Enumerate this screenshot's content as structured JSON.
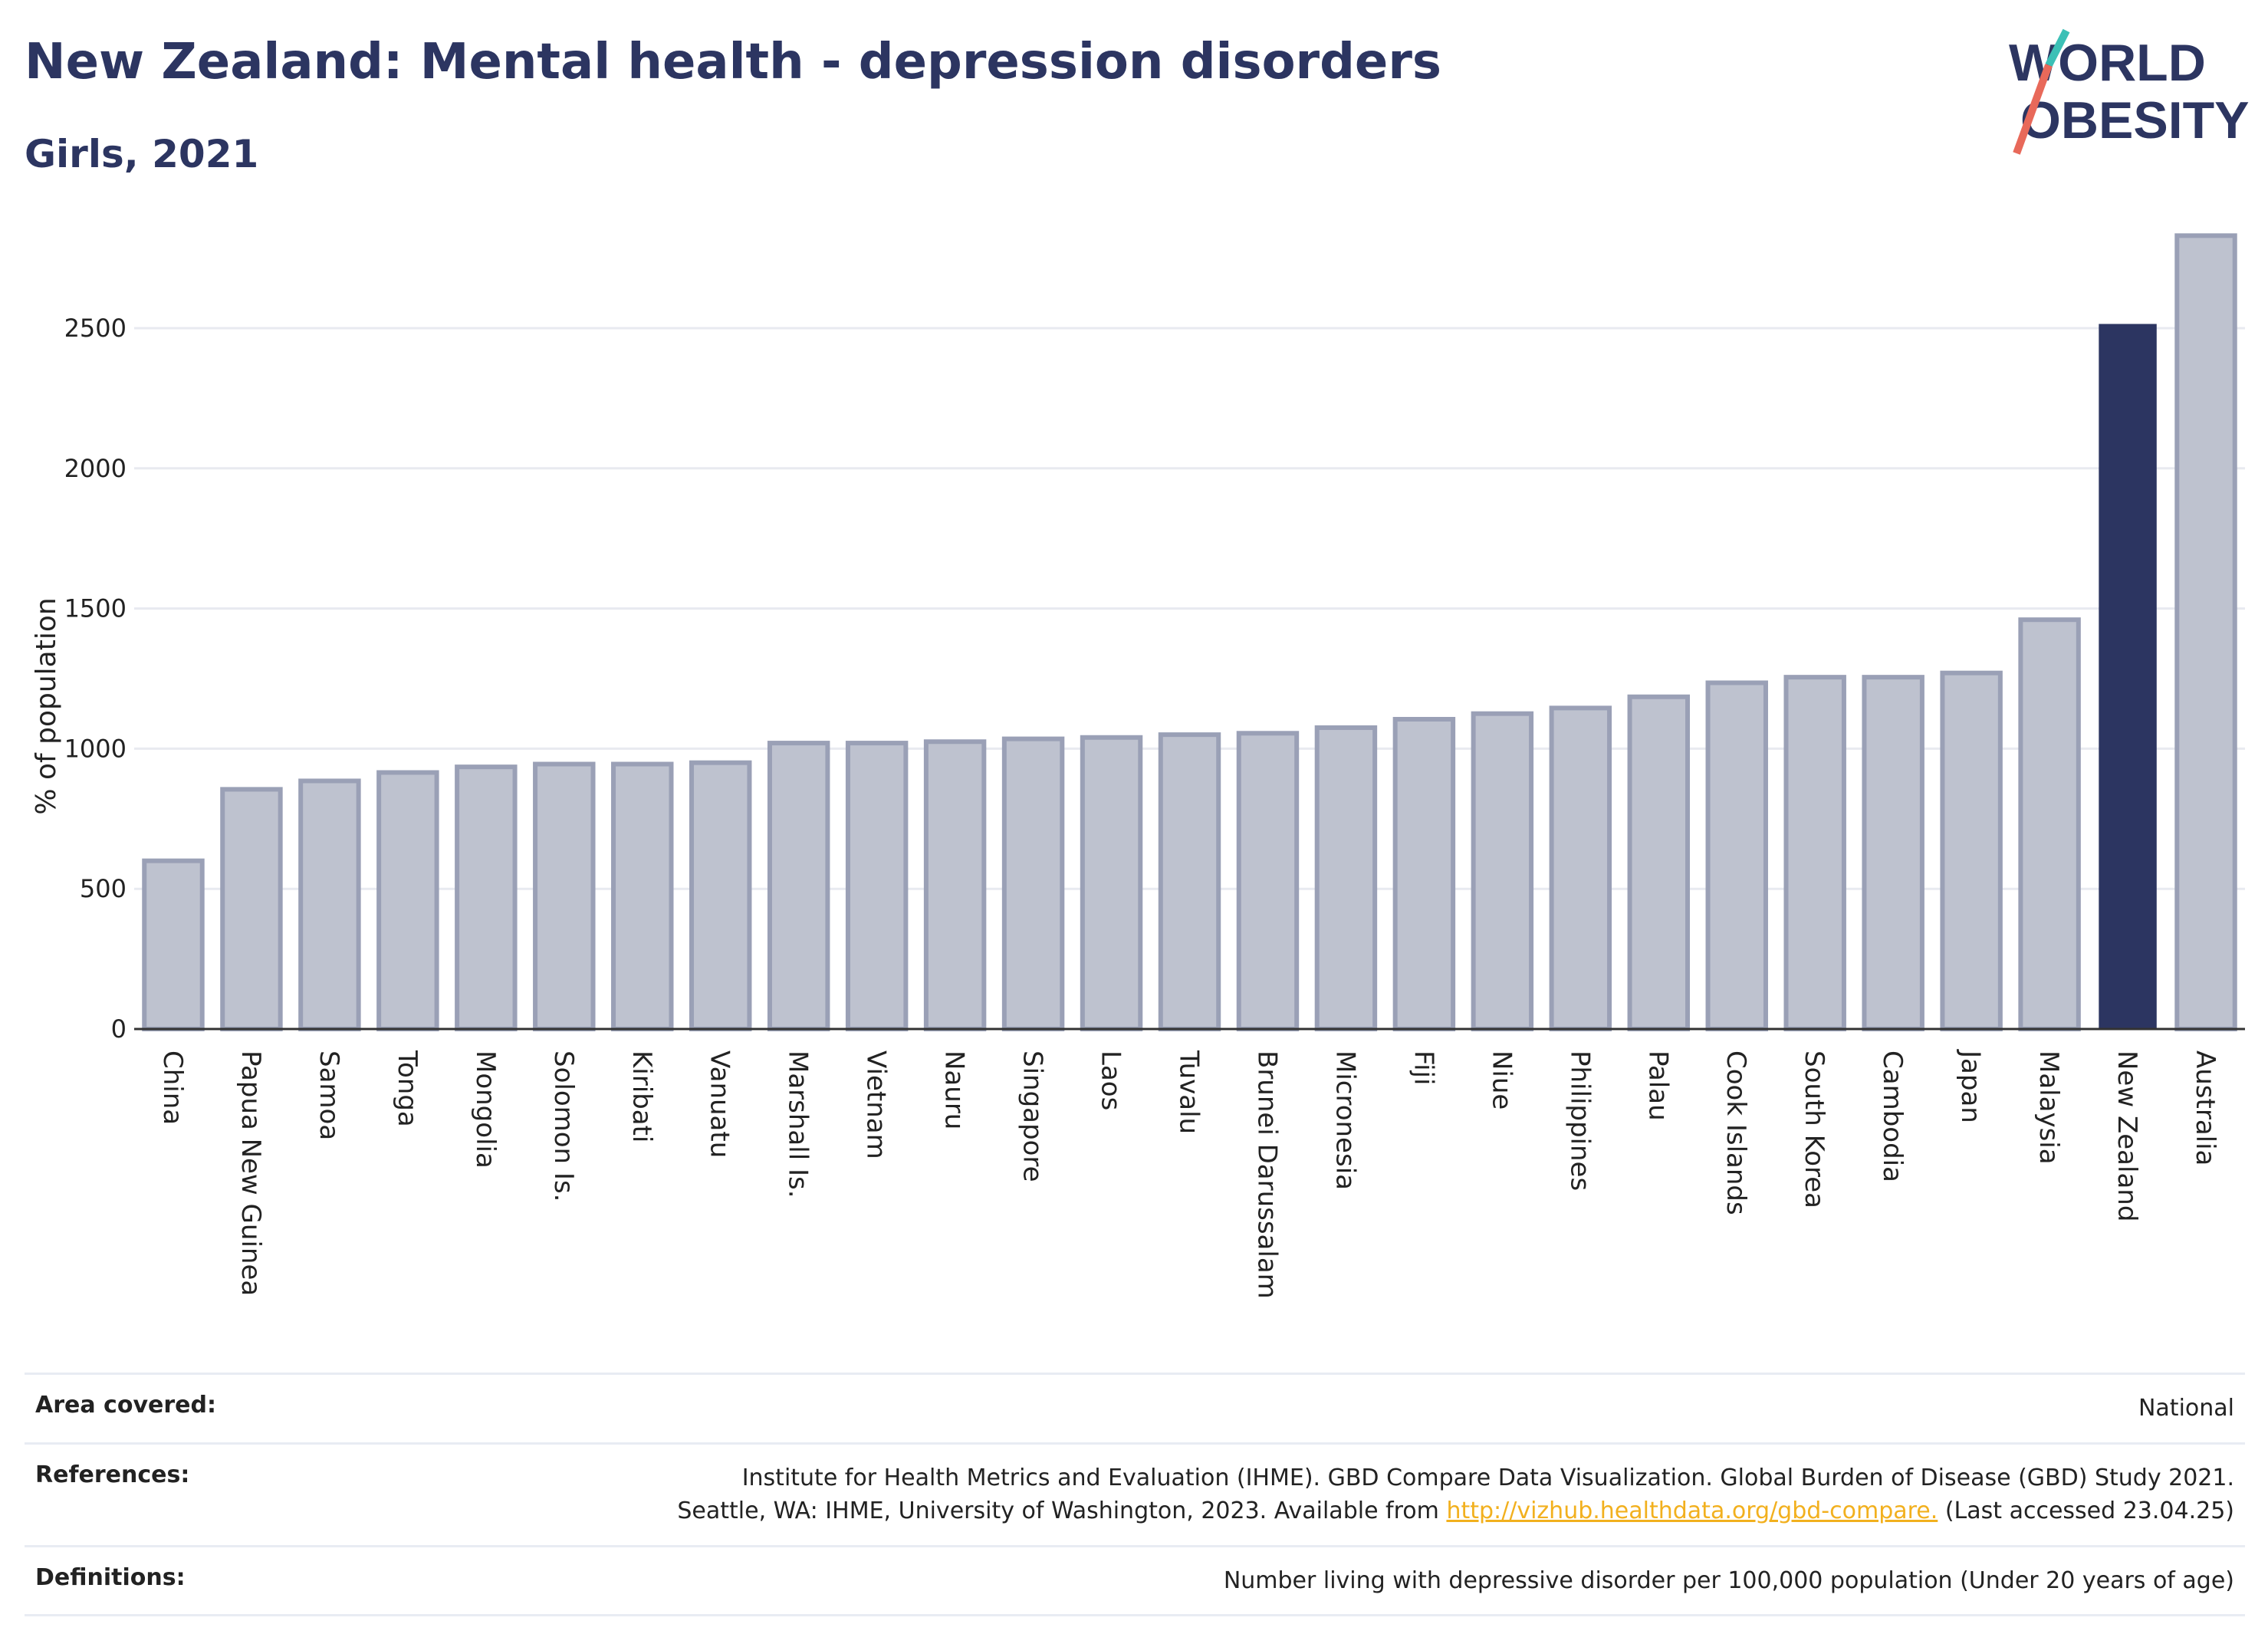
{
  "header": {
    "title": "New Zealand: Mental health - depression disorders",
    "subtitle": "Girls, 2021"
  },
  "logo": {
    "line1": "WORLD",
    "line2": "OBESITY"
  },
  "colors": {
    "highlight": "#2c3561",
    "bar_fill": "#bec2cf",
    "bar_stroke": "#9aa0b6",
    "grid": "#e8eaf0",
    "link": "#f2b01e"
  },
  "chart_data": {
    "type": "bar",
    "ylabel": "% of population",
    "ylim": [
      0,
      2850
    ],
    "yticks": [
      0,
      500,
      1000,
      1500,
      2000,
      2500
    ],
    "highlight": "New Zealand",
    "categories": [
      "China",
      "Papua New Guinea",
      "Samoa",
      "Tonga",
      "Mongolia",
      "Solomon Is.",
      "Kiribati",
      "Vanuatu",
      "Marshall Is.",
      "Vietnam",
      "Nauru",
      "Singapore",
      "Laos",
      "Tuvalu",
      "Brunei Darussalam",
      "Micronesia",
      "Fiji",
      "Niue",
      "Philippines",
      "Palau",
      "Cook Islands",
      "South Korea",
      "Cambodia",
      "Japan",
      "Malaysia",
      "New Zealand",
      "Australia"
    ],
    "values": [
      600,
      855,
      885,
      915,
      935,
      945,
      945,
      950,
      1020,
      1020,
      1025,
      1035,
      1040,
      1050,
      1055,
      1075,
      1105,
      1125,
      1145,
      1185,
      1235,
      1255,
      1255,
      1270,
      1460,
      2515,
      2830
    ]
  },
  "footer": {
    "area_label": "Area covered:",
    "area_value": "National",
    "refs_label": "References:",
    "refs_line1": "Institute for Health Metrics and Evaluation (IHME). GBD Compare Data Visualization. Global Burden of Disease (GBD) Study 2021.",
    "refs_line2_pre": "Seattle, WA: IHME, University of Washington, 2023. Available from",
    "refs_link": "http://vizhub.healthdata.org/gbd-compare.",
    "refs_line2_post": "(Last accessed 23.04.25)",
    "def_label": "Definitions:",
    "def_value": "Number living with depressive disorder per 100,000 population (Under 20 years of age)"
  }
}
